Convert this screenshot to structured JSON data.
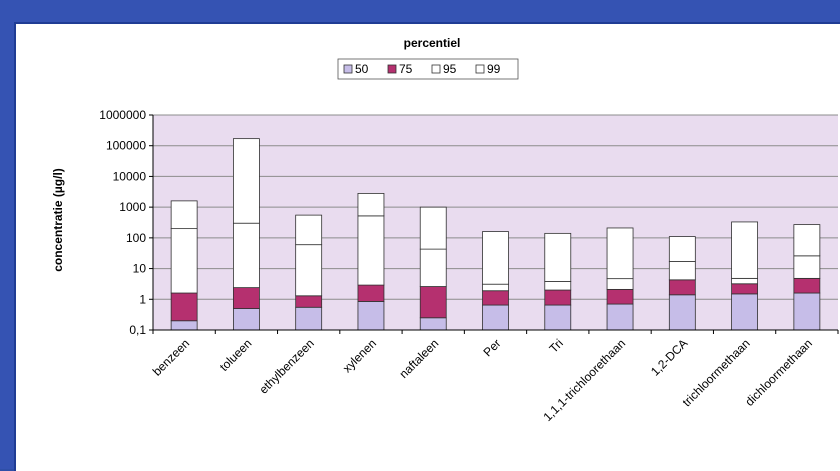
{
  "chart_data": {
    "type": "bar",
    "stacked": true,
    "log_scale": true,
    "legend_title": "percentiel",
    "legend_position": "top-center",
    "grid": true,
    "ylabel": "concentratie (µg/l)",
    "xlabel": "",
    "ylim": [
      0.1,
      1000000
    ],
    "yticks": [
      {
        "value": 0.1,
        "label": "0,1"
      },
      {
        "value": 1,
        "label": "1"
      },
      {
        "value": 10,
        "label": "10"
      },
      {
        "value": 100,
        "label": "100"
      },
      {
        "value": 1000,
        "label": "1000"
      },
      {
        "value": 10000,
        "label": "10000"
      },
      {
        "value": 100000,
        "label": "100000"
      },
      {
        "value": 1000000,
        "label": "1000000"
      }
    ],
    "categories": [
      "benzeen",
      "tolueen",
      "ethylbenzeen",
      "xylenen",
      "naftaleen",
      "Per",
      "Tri",
      "1,1,1-trichloorethaan",
      "1,2-DCA",
      "trichloormethaan",
      "dichloormethaan"
    ],
    "series": [
      {
        "name": "50",
        "color": "#c6bde8",
        "values": [
          0.2,
          0.5,
          0.55,
          0.85,
          0.25,
          0.65,
          0.65,
          0.7,
          1.4,
          1.5,
          1.6
        ]
      },
      {
        "name": "75",
        "color": "#b5306f",
        "values": [
          1.6,
          2.4,
          1.3,
          2.9,
          2.6,
          1.9,
          2.0,
          2.1,
          4.3,
          3.2,
          4.8
        ]
      },
      {
        "name": "95",
        "color": "#ffffff",
        "values": [
          200,
          300,
          60,
          520,
          43,
          3.1,
          3.8,
          4.7,
          17,
          4.8,
          26
        ]
      },
      {
        "name": "99",
        "color": "#ffffff",
        "values": [
          1600,
          170000,
          550,
          2800,
          1000,
          160,
          140,
          210,
          110,
          330,
          270
        ]
      }
    ],
    "colors": {
      "plot_background": "#e9dcef",
      "frame": "#3553b3",
      "gridline": "#8c8c8c",
      "bar_outline": "#303030"
    }
  }
}
